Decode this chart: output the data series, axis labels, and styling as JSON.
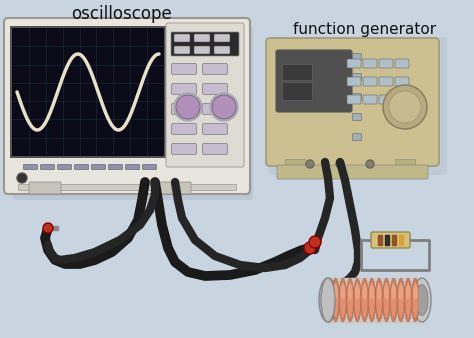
{
  "bg_color": "#c8d4e0",
  "title": "oscilloscope",
  "title2": "function generator",
  "osc_body_color": "#e8e4de",
  "osc_screen_bg": "#0a0a18",
  "osc_grid_color": "#1e2e3e",
  "wave_color": "#e8d870",
  "ctrl_color": "#dedad4",
  "btn_color": "#b0aac0",
  "knob_color": "#b090b8",
  "fg_body_color": "#ccc090",
  "fg_display_bg": "#606060",
  "fg_btn_color": "#b0c0c8",
  "cable_color": "#252525",
  "cable_shadow": "#3a3a3a",
  "coil_color": "#e09070",
  "coil_highlight": "#f0b090",
  "coil_shadow": "#c07050",
  "coil_end_color": "#c0c0c0",
  "coil_end_dark": "#909090",
  "resistor_body": "#d4c080",
  "resistor_stripe1": "#8B4513",
  "resistor_stripe2": "#1a1a1a",
  "wire_color": "#808080",
  "connector_red": "#c03020",
  "shadow_color": "#b0bcc8"
}
